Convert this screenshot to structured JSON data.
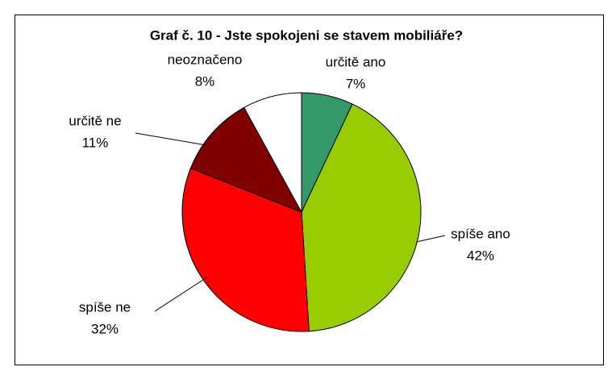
{
  "chart_data": {
    "type": "pie",
    "title": "Graf č. 10 - Jste spokojeni se stavem mobiliáře?",
    "categories": [
      "určitě ano",
      "spíše ano",
      "spíše ne",
      "určitě ne",
      "neoznačeno"
    ],
    "values": [
      7,
      42,
      32,
      11,
      8
    ],
    "value_labels": [
      "7%",
      "42%",
      "32%",
      "11%",
      "8%"
    ],
    "colors": [
      "#339966",
      "#99cc00",
      "#ff0000",
      "#800000",
      "#ffffff"
    ]
  }
}
